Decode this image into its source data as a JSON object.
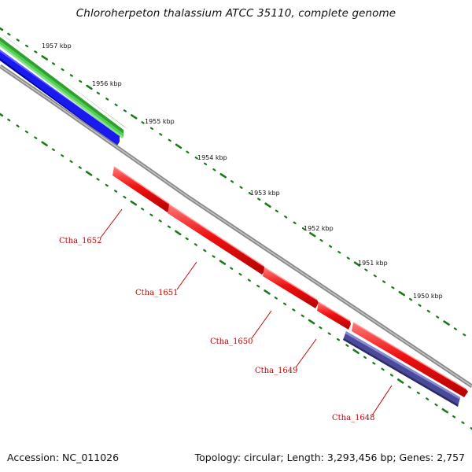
{
  "header": {
    "title": "Chloroherpeton thalassium ATCC 35110, complete genome"
  },
  "footer": {
    "accession": "Accession: NC_011026",
    "summary": "Topology: circular; Length: 3,293,456 bp; Genes: 2,757"
  },
  "scale": {
    "tick_labels": [
      "1957 kbp",
      "1956 kbp",
      "1955 kbp",
      "1954 kbp",
      "1953 kbp",
      "1952 kbp",
      "1951 kbp",
      "1950 kbp"
    ]
  },
  "genes": [
    {
      "name": "Ctha_1652"
    },
    {
      "name": "Ctha_1651"
    },
    {
      "name": "Ctha_1650"
    },
    {
      "name": "Ctha_1649"
    },
    {
      "name": "Ctha_1648"
    }
  ],
  "colors": {
    "backbone": "#8a8a8a",
    "feature_dark_green": "#1f8a1f",
    "feature_light_green": "#4fcf4f",
    "feature_blue": "#1a1aee",
    "cds_red": "#ee1111",
    "feature_purple": "#4a4a9a",
    "tick_green": "#1a7a1a",
    "label_red": "#cc0000"
  }
}
